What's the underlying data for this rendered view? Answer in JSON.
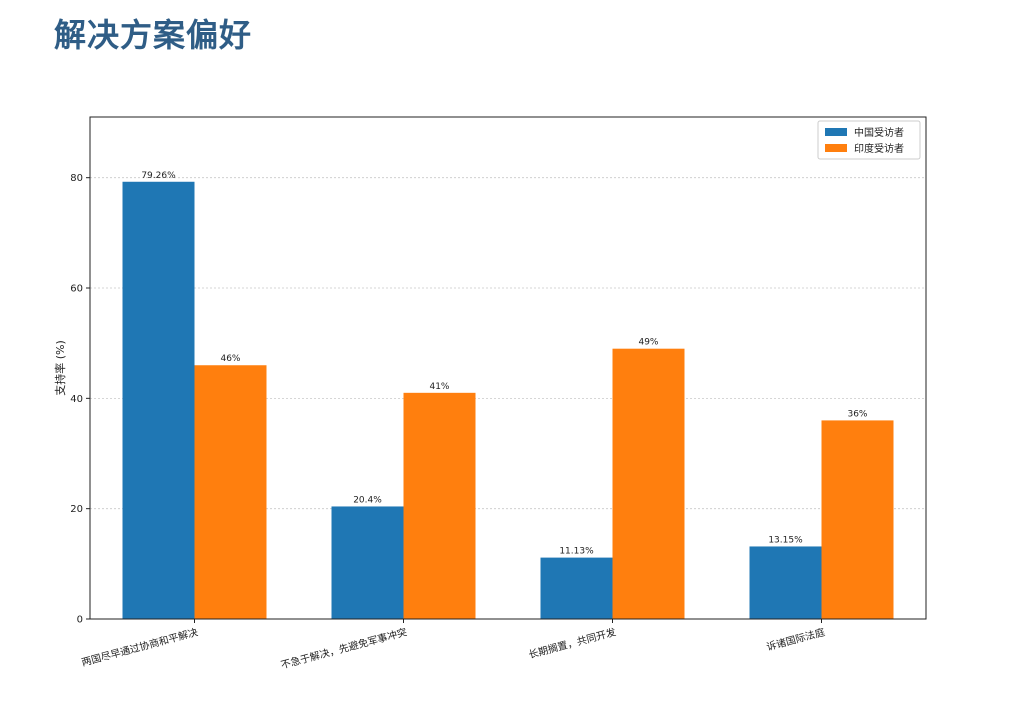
{
  "page": {
    "title": "解决方案偏好"
  },
  "chart_data": {
    "type": "bar",
    "title": "",
    "xlabel": "",
    "ylabel": "支持率 (%)",
    "ylim": [
      0,
      91
    ],
    "yticks": [
      0,
      20,
      40,
      60,
      80
    ],
    "grid": "horizontal-dashed",
    "legend_position": "top-right",
    "categories": [
      "两国尽早通过协商和平解决",
      "不急于解决，先避免军事冲突",
      "长期搁置，共同开发",
      "诉诸国际法庭"
    ],
    "series": [
      {
        "name": "中国受访者",
        "color": "#1f77b4",
        "values": [
          79.26,
          20.4,
          11.13,
          13.15
        ],
        "labels": [
          "79.26%",
          "20.4%",
          "11.13%",
          "13.15%"
        ]
      },
      {
        "name": "印度受访者",
        "color": "#ff7f0e",
        "values": [
          46,
          41,
          49,
          36
        ],
        "labels": [
          "46%",
          "41%",
          "49%",
          "36%"
        ]
      }
    ]
  }
}
